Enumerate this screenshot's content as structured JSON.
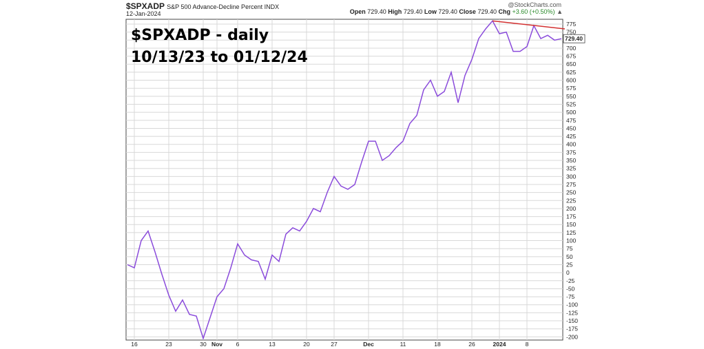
{
  "header": {
    "symbol": "$SPXADP",
    "description": "S&P 500 Advance-Decline Percent",
    "exchange": "INDX",
    "date": "12-Jan-2024",
    "watermark": "@StockCharts.com",
    "ohlc": {
      "open_label": "Open",
      "open": "729.40",
      "high_label": "High",
      "high": "729.40",
      "low_label": "Low",
      "low": "729.40",
      "close_label": "Close",
      "close": "729.40",
      "chg_label": "Chg",
      "chg": "+3.60 (+0.50%)"
    }
  },
  "annotation": {
    "line1": "$SPXADP - daily",
    "line2": "10/13/23 to 01/12/24"
  },
  "chart_data": {
    "type": "line",
    "ylim": [
      -210,
      790
    ],
    "y_ticks": [
      -200,
      -175,
      -150,
      -125,
      -100,
      -75,
      -50,
      -25,
      0,
      25,
      50,
      75,
      100,
      125,
      150,
      175,
      200,
      225,
      250,
      275,
      300,
      325,
      350,
      375,
      400,
      425,
      450,
      475,
      500,
      525,
      550,
      575,
      600,
      625,
      650,
      675,
      700,
      725,
      750,
      775
    ],
    "x_ticks": [
      {
        "label": "16",
        "index": 1
      },
      {
        "label": "23",
        "index": 6
      },
      {
        "label": "30",
        "index": 11
      },
      {
        "label": "Nov",
        "index": 13,
        "bold": true
      },
      {
        "label": "6",
        "index": 16
      },
      {
        "label": "13",
        "index": 21
      },
      {
        "label": "20",
        "index": 26
      },
      {
        "label": "27",
        "index": 30
      },
      {
        "label": "Dec",
        "index": 35,
        "bold": true
      },
      {
        "label": "11",
        "index": 40
      },
      {
        "label": "18",
        "index": 45
      },
      {
        "label": "26",
        "index": 50
      },
      {
        "label": "2024",
        "index": 54,
        "bold": true
      },
      {
        "label": "8",
        "index": 58
      }
    ],
    "last_value_label": "729.40",
    "series": [
      {
        "color": "#8a4bdb",
        "values": [
          25,
          15,
          100,
          130,
          65,
          -5,
          -70,
          -120,
          -85,
          -130,
          -135,
          -205,
          -140,
          -75,
          -50,
          15,
          90,
          55,
          40,
          35,
          -20,
          55,
          35,
          120,
          140,
          130,
          160,
          200,
          190,
          250,
          300,
          270,
          260,
          275,
          345,
          410,
          410,
          350,
          365,
          390,
          410,
          465,
          490,
          570,
          600,
          550,
          565,
          625,
          530,
          615,
          665,
          730,
          760,
          785,
          745,
          750,
          690,
          690,
          705,
          770,
          730,
          740,
          725,
          729.4
        ]
      }
    ],
    "trendline": {
      "color": "#d32f2f",
      "from": {
        "index": 53,
        "value": 785
      },
      "to": {
        "index": 63,
        "value": 760
      }
    }
  }
}
